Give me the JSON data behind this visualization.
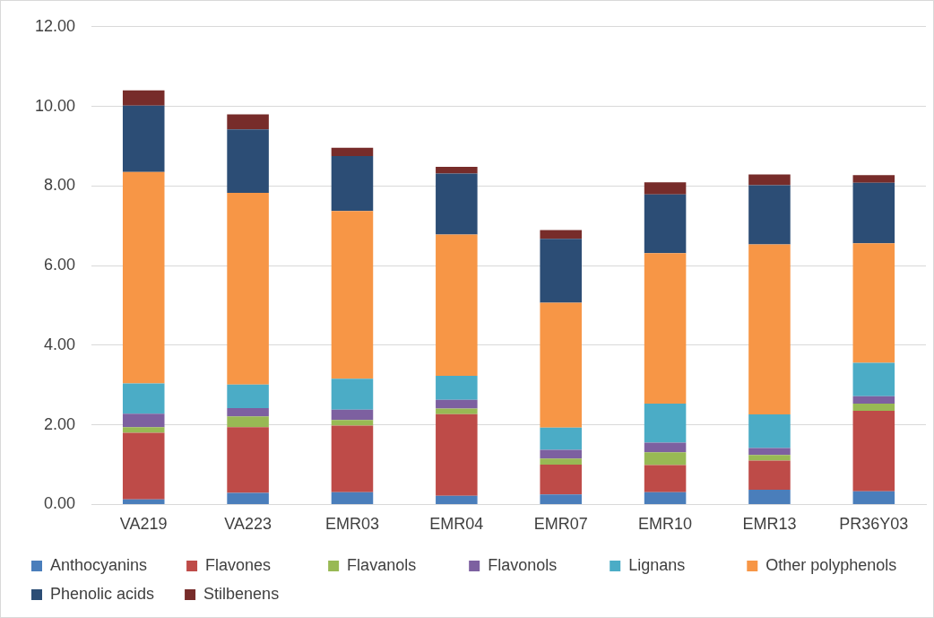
{
  "chart_data": {
    "type": "bar",
    "stacked": true,
    "categories": [
      "VA219",
      "VA223",
      "EMR03",
      "EMR04",
      "EMR07",
      "EMR10",
      "EMR13",
      "PR36Y03"
    ],
    "series": [
      {
        "name": "Anthocyanins",
        "color": "#4a7ebb",
        "values": [
          0.13,
          0.29,
          0.31,
          0.22,
          0.25,
          0.31,
          0.37,
          0.33
        ]
      },
      {
        "name": "Flavones",
        "color": "#be4b48",
        "values": [
          1.67,
          1.65,
          1.67,
          2.05,
          0.75,
          0.68,
          0.73,
          2.02
        ]
      },
      {
        "name": "Flavanols",
        "color": "#98b954",
        "values": [
          0.14,
          0.27,
          0.14,
          0.14,
          0.15,
          0.32,
          0.14,
          0.18
        ]
      },
      {
        "name": "Flavonols",
        "color": "#7d60a0",
        "values": [
          0.34,
          0.21,
          0.26,
          0.22,
          0.22,
          0.24,
          0.18,
          0.19
        ]
      },
      {
        "name": "Lignans",
        "color": "#4bacc6",
        "values": [
          0.76,
          0.59,
          0.78,
          0.6,
          0.56,
          0.98,
          0.84,
          0.84
        ]
      },
      {
        "name": "Other polyphenols",
        "color": "#f79646",
        "values": [
          5.31,
          4.82,
          4.21,
          3.55,
          3.14,
          3.78,
          4.27,
          3.0
        ]
      },
      {
        "name": "Phenolic acids",
        "color": "#2c4d75",
        "values": [
          1.67,
          1.59,
          1.38,
          1.53,
          1.6,
          1.48,
          1.49,
          1.52
        ]
      },
      {
        "name": "Stilbenens",
        "color": "#772c2a",
        "values": [
          0.38,
          0.38,
          0.21,
          0.17,
          0.22,
          0.3,
          0.27,
          0.19
        ]
      }
    ],
    "ylim": [
      0,
      12
    ],
    "yticks": [
      {
        "value": 0,
        "label": "0.00"
      },
      {
        "value": 2,
        "label": "2.00"
      },
      {
        "value": 4,
        "label": "4.00"
      },
      {
        "value": 6,
        "label": "6.00"
      },
      {
        "value": 8,
        "label": "8.00"
      },
      {
        "value": 10,
        "label": "10.00"
      },
      {
        "value": 12,
        "label": "12.00"
      }
    ],
    "grid": "y",
    "legend": "bottom"
  }
}
